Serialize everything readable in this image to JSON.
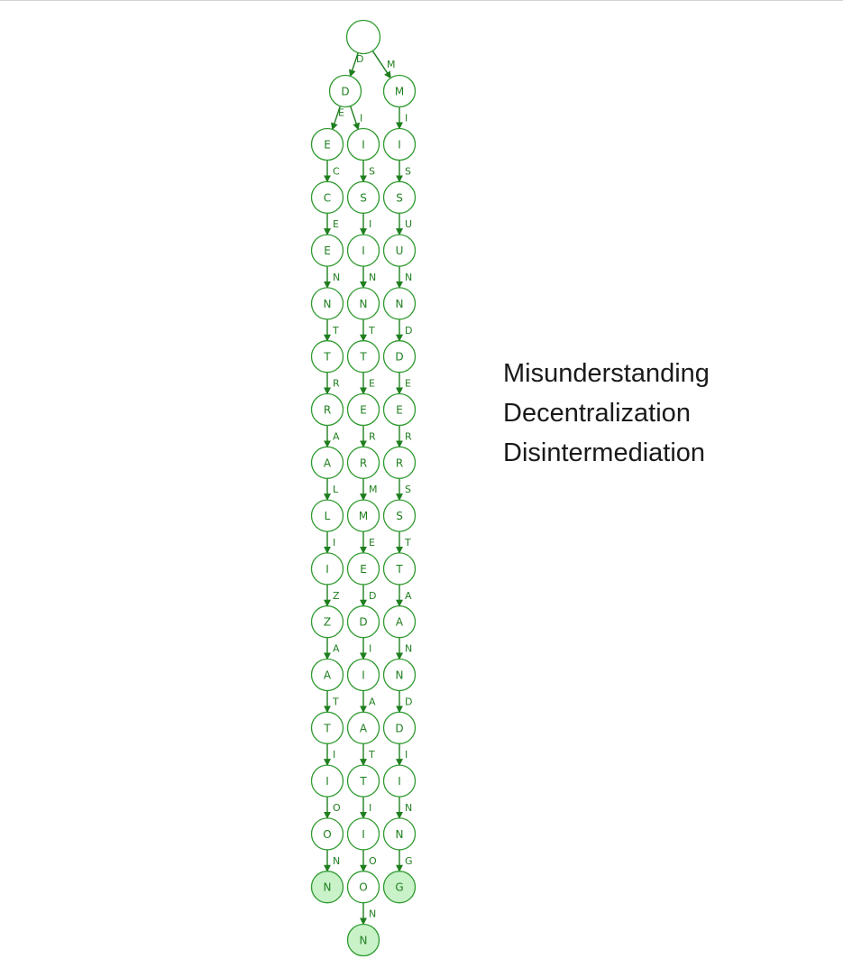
{
  "words": [
    "Misunderstanding",
    "Decentralization",
    "Disintermediation"
  ],
  "colors": {
    "stroke": "#2e9a2e",
    "edge": "#1f7f1f",
    "node_fill": "#ffffff",
    "end_fill": "#c9f2c9",
    "text": "#1a1a1a"
  }
}
